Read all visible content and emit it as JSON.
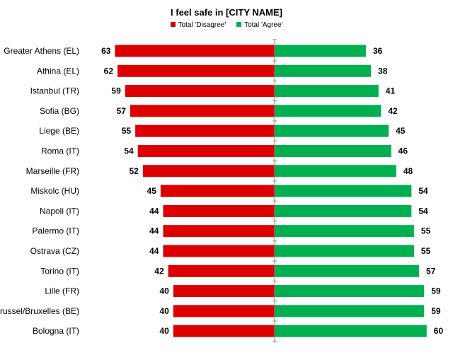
{
  "chart_data": {
    "type": "bar",
    "orientation": "horizontal-diverging",
    "title": "I feel safe in [CITY NAME]",
    "categories": [
      "Greater Athens (EL)",
      "Athina (EL)",
      "Istanbul (TR)",
      "Sofia (BG)",
      "Liege (BE)",
      "Roma (IT)",
      "Marseille (FR)",
      "Miskolc (HU)",
      "Napoli (IT)",
      "Palermo (IT)",
      "Ostrava (CZ)",
      "Torino (IT)",
      "Lille (FR)",
      "Brussel/Bruxelles (BE)",
      "Bologna (IT)"
    ],
    "series": [
      {
        "name": "Total 'Disagree'",
        "color": "#dd0000",
        "direction": "left",
        "values": [
          63,
          62,
          59,
          57,
          55,
          54,
          52,
          45,
          44,
          44,
          44,
          42,
          40,
          40,
          40
        ]
      },
      {
        "name": "Total 'Agree'",
        "color": "#00b050",
        "direction": "right",
        "values": [
          36,
          38,
          41,
          42,
          45,
          46,
          48,
          54,
          54,
          55,
          55,
          57,
          59,
          59,
          60
        ]
      }
    ],
    "legend_position": "top-center",
    "grid": false,
    "xlim": [
      -63,
      63
    ]
  }
}
